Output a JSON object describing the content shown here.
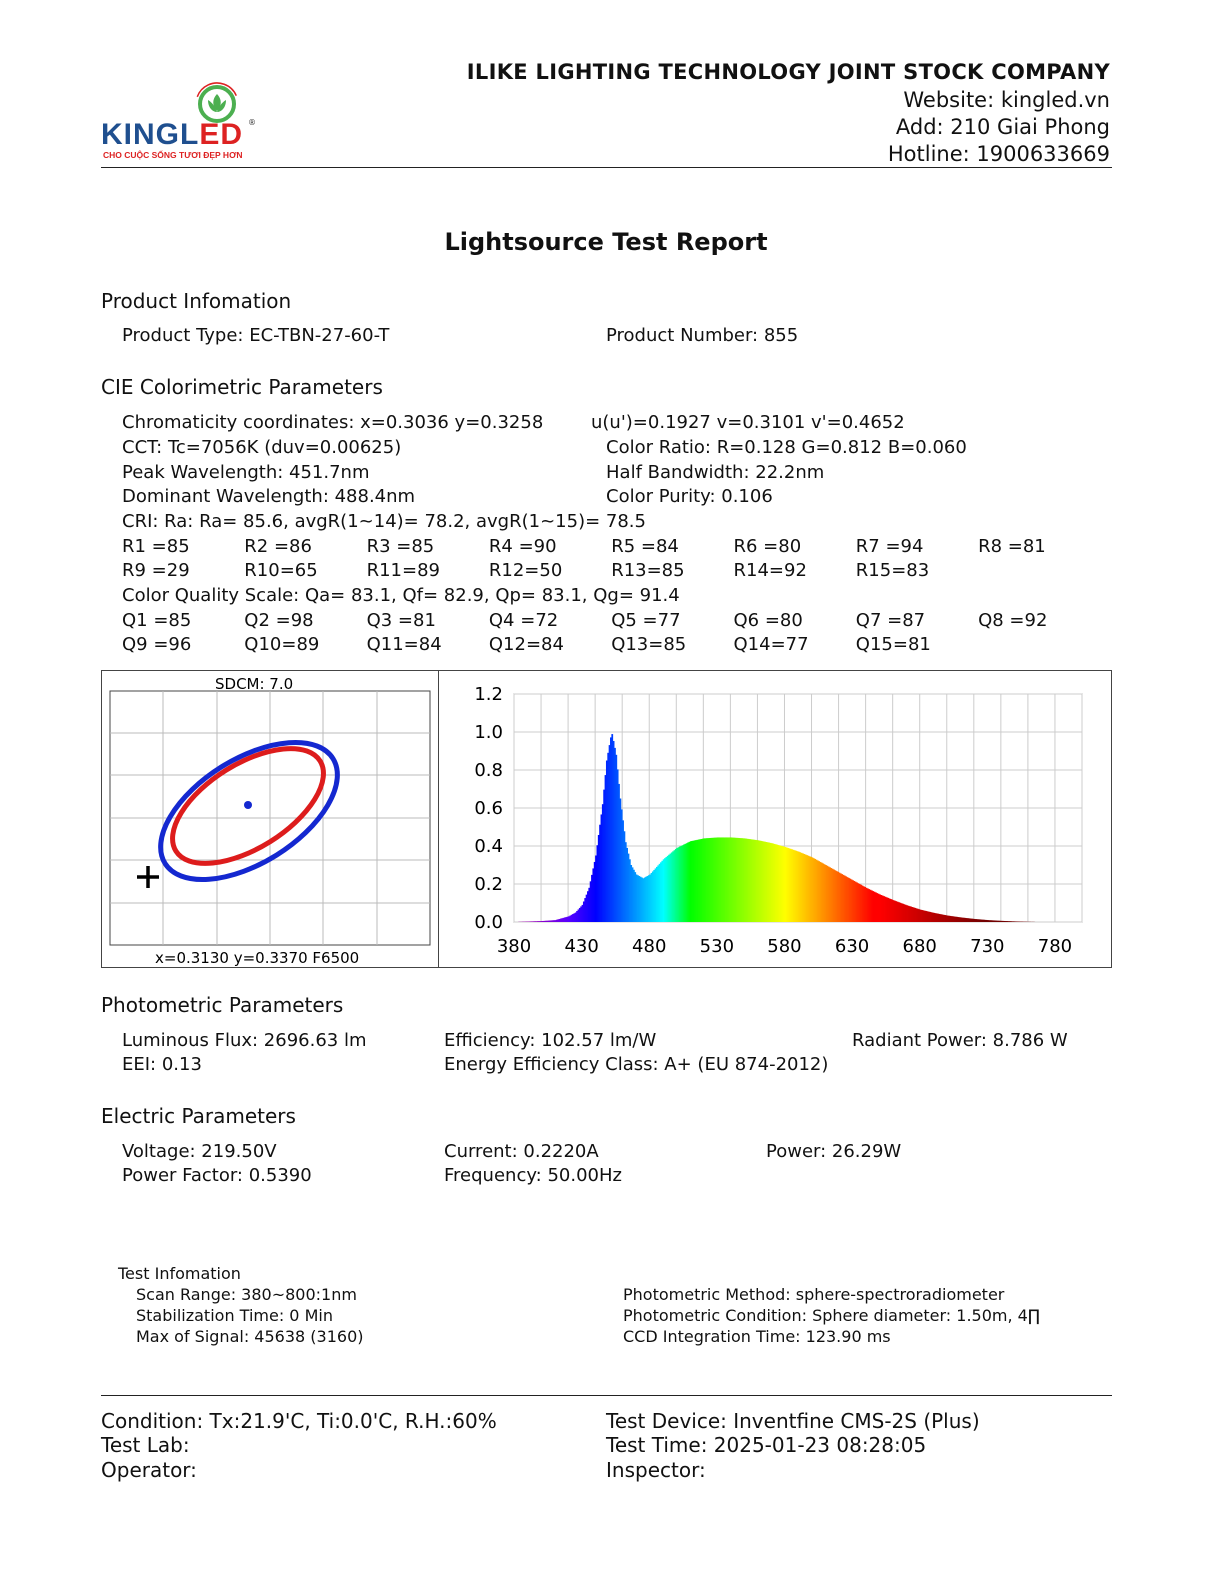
{
  "header": {
    "logo_text": "KINGLED",
    "logo_tagline": "CHO CUỘC SỐNG TƯƠI ĐẸP HƠN",
    "company": "ILIKE LIGHTING TECHNOLOGY JOINT STOCK COMPANY",
    "website": "Website: kingled.vn",
    "address": "Add: 210 Giai Phong",
    "hotline": "Hotline: 1900633669"
  },
  "report_title": "Lightsource Test Report",
  "product": {
    "heading": "Product Infomation",
    "type": "Product Type: EC-TBN-27-60-T",
    "number": "Product Number: 855"
  },
  "cie": {
    "heading": "CIE Colorimetric Parameters",
    "chromaticity": "Chromaticity coordinates: x=0.3036 y=0.3258",
    "uv": "u(u')=0.1927 v=0.3101 v'=0.4652",
    "cct": "CCT: Tc=7056K (duv=0.00625)",
    "color_ratio": "Color Ratio: R=0.128  G=0.812  B=0.060",
    "peak": "Peak Wavelength: 451.7nm",
    "half_bw": "Half Bandwidth: 22.2nm",
    "dominant": "Dominant Wavelength: 488.4nm",
    "purity": "Color Purity: 0.106",
    "cri": "CRI: Ra: Ra= 85.6, avgR(1~14)= 78.2, avgR(1~15)= 78.5",
    "r_row1": [
      "R1 =85",
      "R2 =86",
      "R3 =85",
      "R4 =90",
      "R5 =84",
      "R6 =80",
      "R7 =94",
      "R8 =81"
    ],
    "r_row2": [
      "R9 =29",
      "R10=65",
      "R11=89",
      "R12=50",
      "R13=85",
      "R14=92",
      "R15=83"
    ],
    "cqs": "Color Quality Scale: Qa= 83.1, Qf= 82.9, Qp= 83.1, Qg= 91.4",
    "q_row1": [
      "Q1 =85",
      "Q2 =98",
      "Q3 =81",
      "Q4 =72",
      "Q5 =77",
      "Q6 =80",
      "Q7 =87",
      "Q8 =92"
    ],
    "q_row2": [
      "Q9 =96",
      "Q10=89",
      "Q11=84",
      "Q12=84",
      "Q13=85",
      "Q14=77",
      "Q15=81"
    ]
  },
  "sdcm": {
    "label": "SDCM:   7.0",
    "reference": "x=0.3130 y=0.3370 F6500"
  },
  "chart_data": {
    "type": "area",
    "x": [
      380,
      400,
      410,
      420,
      425,
      430,
      435,
      440,
      445,
      448,
      451.7,
      455,
      458,
      462,
      466,
      470,
      475,
      480,
      485,
      490,
      500,
      510,
      520,
      530,
      540,
      550,
      560,
      570,
      580,
      590,
      600,
      610,
      620,
      630,
      640,
      650,
      660,
      670,
      680,
      690,
      700,
      710,
      720,
      730,
      740,
      750,
      760,
      770,
      780
    ],
    "values": [
      0,
      0.005,
      0.01,
      0.03,
      0.05,
      0.09,
      0.18,
      0.35,
      0.62,
      0.85,
      1.0,
      0.88,
      0.65,
      0.42,
      0.3,
      0.25,
      0.23,
      0.25,
      0.29,
      0.33,
      0.39,
      0.425,
      0.44,
      0.445,
      0.445,
      0.44,
      0.43,
      0.415,
      0.395,
      0.37,
      0.34,
      0.3,
      0.26,
      0.22,
      0.18,
      0.145,
      0.115,
      0.088,
      0.065,
      0.048,
      0.034,
      0.024,
      0.016,
      0.01,
      0.006,
      0.003,
      0.001,
      0,
      0
    ],
    "xlim": [
      380,
      800
    ],
    "ylim": [
      0,
      1.2
    ],
    "xticks": [
      380,
      430,
      480,
      530,
      580,
      630,
      680,
      730,
      780
    ],
    "yticks": [
      "0.0",
      "0.2",
      "0.4",
      "0.6",
      "0.8",
      "1.0",
      "1.2"
    ],
    "grid": true
  },
  "photometric": {
    "heading": "Photometric Parameters",
    "flux": "Luminous Flux: 2696.63 lm",
    "efficiency": "Efficiency: 102.57 lm/W",
    "radiant": "Radiant Power: 8.786 W",
    "eei": "EEI:  0.13",
    "energy_class": "Energy Efficiency Class: A+ (EU 874-2012)"
  },
  "electric": {
    "heading": "Electric Parameters",
    "voltage": "Voltage: 219.50V",
    "current": "Current: 0.2220A",
    "power": "Power: 26.29W",
    "pf": "Power Factor: 0.5390",
    "frequency": "Frequency: 50.00Hz"
  },
  "test_info": {
    "heading": "Test Infomation",
    "scan": "Scan Range: 380~800:1nm",
    "stabilization": "Stabilization Time: 0 Min",
    "max_signal": "Max of Signal: 45638 (3160)",
    "method": "Photometric Method: sphere-spectroradiometer",
    "condition": "Photometric Condition: Sphere diameter: 1.50m, 4∏",
    "ccd": "CCD Integration Time: 123.90 ms"
  },
  "footer": {
    "condition": "Condition: Tx:21.9'C, Ti:0.0'C, R.H.:60%",
    "device": "Test Device: Inventfine CMS-2S (Plus)",
    "lab": "Test Lab:",
    "time": "Test Time: 2025-01-23 08:28:05",
    "operator": "Operator:",
    "inspector": "Inspector:"
  },
  "colors": {
    "logo_blue": "#1f4f8f",
    "logo_red": "#dd2222",
    "logo_green": "#4caf50"
  }
}
